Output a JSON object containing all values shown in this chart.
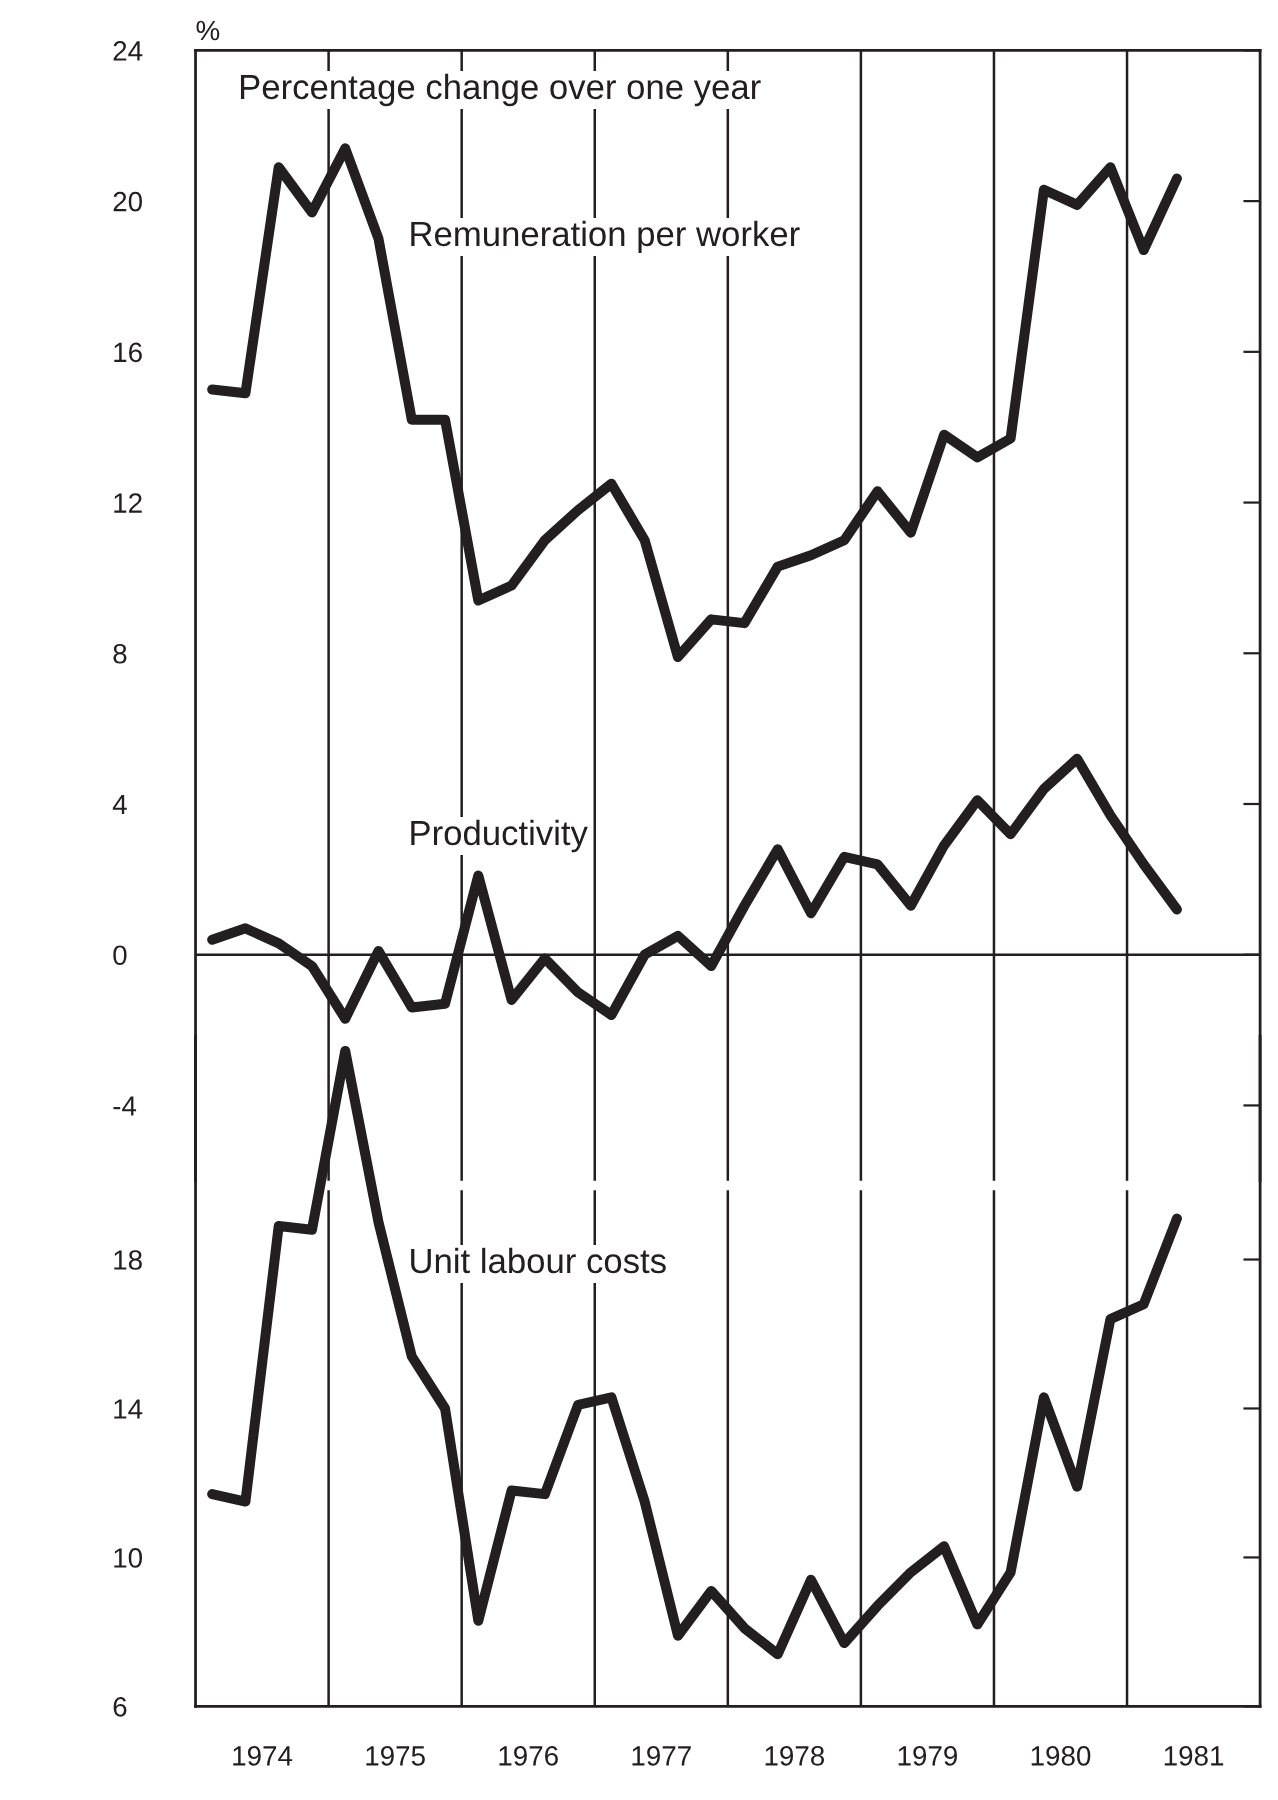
{
  "chart_data": [
    {
      "type": "line",
      "ylabel": "%",
      "annotations": [
        "Percentage change over one year"
      ],
      "x": [
        1974.125,
        1974.375,
        1974.625,
        1974.875,
        1975.125,
        1975.375,
        1975.625,
        1975.875,
        1976.125,
        1976.375,
        1976.625,
        1976.875,
        1977.125,
        1977.375,
        1977.625,
        1977.875,
        1978.125,
        1978.375,
        1978.625,
        1978.875,
        1979.125,
        1979.375,
        1979.625,
        1979.875,
        1980.125,
        1980.375,
        1980.625,
        1980.875,
        1981.125,
        1981.375
      ],
      "series": [
        {
          "name": "Remuneration per worker",
          "color": "#231f20",
          "values": [
            15.0,
            14.9,
            20.9,
            19.7,
            21.4,
            19.0,
            14.2,
            14.2,
            9.4,
            9.8,
            11.0,
            11.8,
            12.5,
            11.0,
            7.9,
            8.9,
            8.8,
            10.3,
            10.6,
            11.0,
            12.3,
            11.2,
            13.8,
            13.2,
            13.7,
            20.3,
            19.9,
            20.9,
            18.7,
            20.6
          ]
        },
        {
          "name": "Productivity",
          "color": "#231f20",
          "values": [
            0.4,
            0.7,
            0.3,
            -0.3,
            -1.7,
            0.1,
            -1.4,
            -1.3,
            2.1,
            -1.2,
            -0.1,
            -1.0,
            -1.6,
            0.0,
            0.5,
            -0.3,
            1.3,
            2.8,
            1.1,
            2.6,
            2.4,
            1.3,
            2.9,
            4.1,
            3.2,
            4.4,
            5.2,
            3.7,
            2.4,
            1.2
          ]
        }
      ],
      "xlim": [
        1974,
        1982
      ],
      "ylim": [
        -6,
        24
      ],
      "yticks": [
        -4,
        0,
        4,
        8,
        12,
        16,
        20,
        24
      ],
      "tick_labels": "y",
      "grid": false,
      "legend": false,
      "marker": "none",
      "line_style": "solid",
      "ref_lines": [
        {
          "axis": "y",
          "value": 0
        },
        {
          "axis": "x",
          "value": 1975
        },
        {
          "axis": "x",
          "value": 1976
        },
        {
          "axis": "x",
          "value": 1977
        },
        {
          "axis": "x",
          "value": 1978
        },
        {
          "axis": "x",
          "value": 1979
        },
        {
          "axis": "x",
          "value": 1980
        },
        {
          "axis": "x",
          "value": 1981
        }
      ]
    },
    {
      "type": "line",
      "x": [
        1974.125,
        1974.375,
        1974.625,
        1974.875,
        1975.125,
        1975.375,
        1975.625,
        1975.875,
        1976.125,
        1976.375,
        1976.625,
        1976.875,
        1977.125,
        1977.375,
        1977.625,
        1977.875,
        1978.125,
        1978.375,
        1978.625,
        1978.875,
        1979.125,
        1979.375,
        1979.625,
        1979.875,
        1980.125,
        1980.375,
        1980.625,
        1980.875,
        1981.125,
        1981.375
      ],
      "series": [
        {
          "name": "Unit labour costs",
          "color": "#231f20",
          "values": [
            11.7,
            11.5,
            18.9,
            18.8,
            23.6,
            19.0,
            15.4,
            14.0,
            8.3,
            11.8,
            11.7,
            14.1,
            14.3,
            11.5,
            7.9,
            9.1,
            8.1,
            7.4,
            9.4,
            7.7,
            8.7,
            9.6,
            10.3,
            8.2,
            9.6,
            14.3,
            11.9,
            16.4,
            16.8,
            19.1
          ]
        }
      ],
      "xlim": [
        1974,
        1982
      ],
      "ylim": [
        6,
        24
      ],
      "yticks": [
        6,
        10,
        14,
        18
      ],
      "xticks": [
        {
          "value": 1974.5,
          "label": "1974"
        },
        {
          "value": 1975.5,
          "label": "1975"
        },
        {
          "value": 1976.5,
          "label": "1976"
        },
        {
          "value": 1977.5,
          "label": "1977"
        },
        {
          "value": 1978.5,
          "label": "1978"
        },
        {
          "value": 1979.5,
          "label": "1979"
        },
        {
          "value": 1980.5,
          "label": "1980"
        },
        {
          "value": 1981.5,
          "label": "1981"
        }
      ],
      "grid": false,
      "legend": false,
      "marker": "none",
      "line_style": "solid",
      "ref_lines": [
        {
          "axis": "x",
          "value": 1975
        },
        {
          "axis": "x",
          "value": 1976
        },
        {
          "axis": "x",
          "value": 1977
        },
        {
          "axis": "x",
          "value": 1978
        },
        {
          "axis": "x",
          "value": 1979
        },
        {
          "axis": "x",
          "value": 1980
        },
        {
          "axis": "x",
          "value": 1981
        }
      ]
    }
  ]
}
